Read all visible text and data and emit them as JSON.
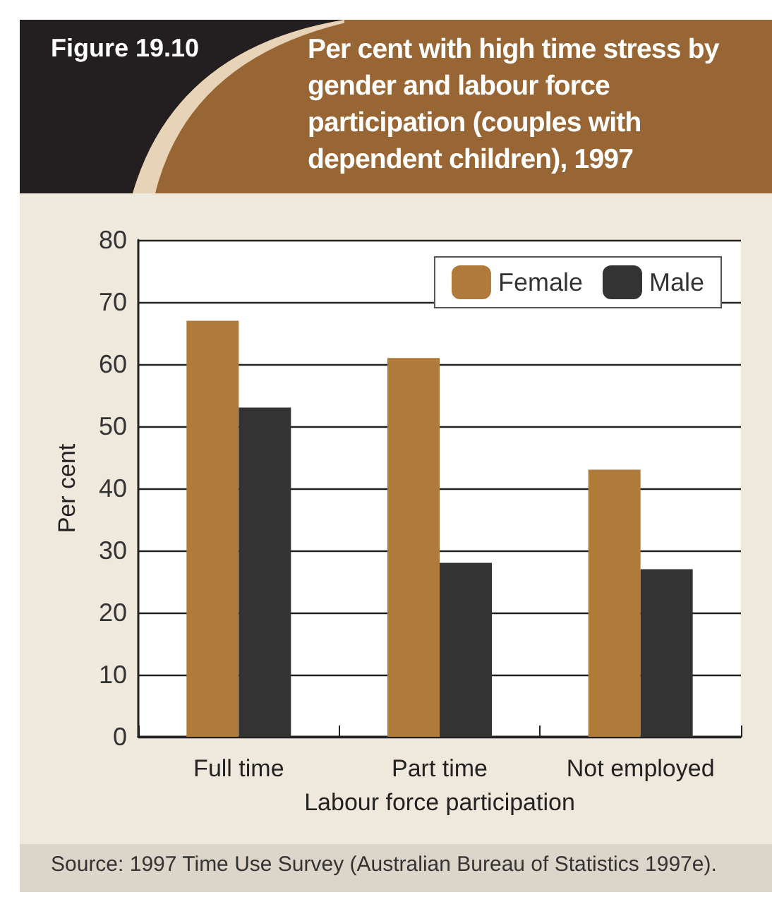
{
  "chart_data": {
    "type": "bar",
    "title": "Per cent with high time stress by gender and labour force participation (couples with dependent children), 1997",
    "annotations": [
      "Figure 19.10",
      "Source: 1997 Time Use Survey (Australian Bureau of Statistics 1997e)."
    ],
    "categories": [
      "Full time",
      "Part time",
      "Not employed"
    ],
    "series": [
      {
        "name": "Female",
        "color": "#b07b3a",
        "values": [
          67,
          61,
          43
        ]
      },
      {
        "name": "Male",
        "color": "#333333",
        "values": [
          53,
          28,
          27
        ]
      }
    ],
    "xlabel": "Labour force participation",
    "ylabel": "Per cent",
    "ylim": [
      0,
      80
    ],
    "yticks": [
      0,
      10,
      20,
      30,
      40,
      50,
      60,
      70,
      80
    ],
    "grid": "y",
    "legend": "top right"
  }
}
